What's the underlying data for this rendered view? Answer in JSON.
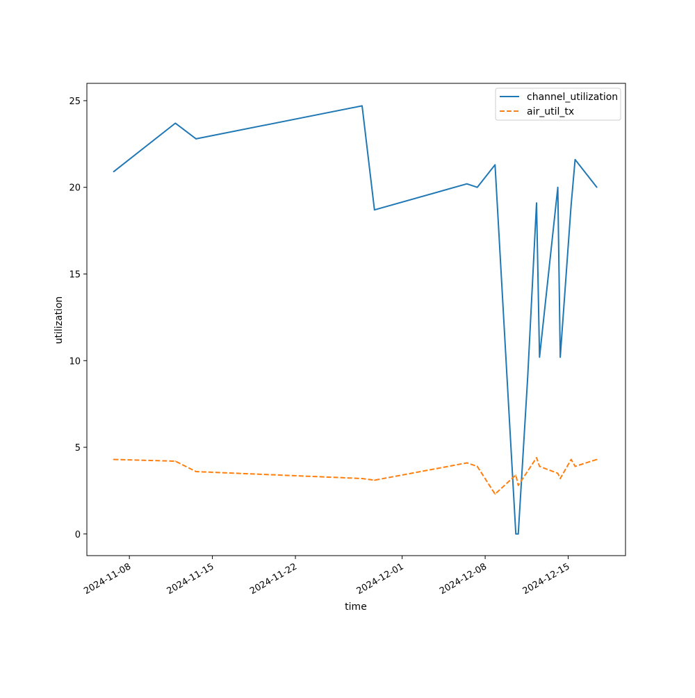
{
  "chart_data": {
    "type": "line",
    "title": "",
    "xlabel": "time",
    "ylabel": "utilization",
    "x_type": "date",
    "xlim": [
      "2024-11-04T10:00",
      "2024-12-19T20:00"
    ],
    "ylim": [
      -1.25,
      26
    ],
    "x_ticks": [
      "2024-11-08",
      "2024-11-15",
      "2024-11-22",
      "2024-12-01",
      "2024-12-08",
      "2024-12-15"
    ],
    "y_ticks": [
      0,
      5,
      10,
      15,
      20,
      25
    ],
    "grid": false,
    "legend": "top-right",
    "series": [
      {
        "name": "channel_utilization",
        "color": "#1f77b4",
        "dash": "solid",
        "points": [
          [
            "2024-11-06T16:00",
            20.9
          ],
          [
            "2024-11-11T21:00",
            23.7
          ],
          [
            "2024-11-13T15:00",
            22.8
          ],
          [
            "2024-11-27T15:00",
            24.7
          ],
          [
            "2024-11-28T16:00",
            18.7
          ],
          [
            "2024-12-06T11:00",
            20.2
          ],
          [
            "2024-12-07T08:00",
            20.0
          ],
          [
            "2024-12-08T20:00",
            21.3
          ],
          [
            "2024-12-10T14:00",
            0.0
          ],
          [
            "2024-12-10T19:00",
            0.0
          ],
          [
            "2024-12-11T14:00",
            9.0
          ],
          [
            "2024-12-12T08:00",
            19.1
          ],
          [
            "2024-12-12T14:00",
            10.2
          ],
          [
            "2024-12-14T03:00",
            20.0
          ],
          [
            "2024-12-14T08:00",
            10.2
          ],
          [
            "2024-12-15T06:00",
            19.0
          ],
          [
            "2024-12-15T14:00",
            21.6
          ],
          [
            "2024-12-17T10:00",
            20.0
          ]
        ]
      },
      {
        "name": "air_util_tx",
        "color": "#ff7f0e",
        "dash": "dashed",
        "points": [
          [
            "2024-11-06T16:00",
            4.3
          ],
          [
            "2024-11-11T21:00",
            4.2
          ],
          [
            "2024-11-13T15:00",
            3.6
          ],
          [
            "2024-11-27T15:00",
            3.2
          ],
          [
            "2024-11-28T16:00",
            3.1
          ],
          [
            "2024-12-06T11:00",
            4.1
          ],
          [
            "2024-12-07T08:00",
            3.9
          ],
          [
            "2024-12-08T20:00",
            2.3
          ],
          [
            "2024-12-10T14:00",
            3.4
          ],
          [
            "2024-12-10T19:00",
            2.8
          ],
          [
            "2024-12-12T08:00",
            4.4
          ],
          [
            "2024-12-12T14:00",
            3.9
          ],
          [
            "2024-12-14T03:00",
            3.5
          ],
          [
            "2024-12-14T08:00",
            3.2
          ],
          [
            "2024-12-15T06:00",
            4.3
          ],
          [
            "2024-12-15T14:00",
            3.9
          ],
          [
            "2024-12-17T10:00",
            4.3
          ]
        ]
      }
    ]
  }
}
